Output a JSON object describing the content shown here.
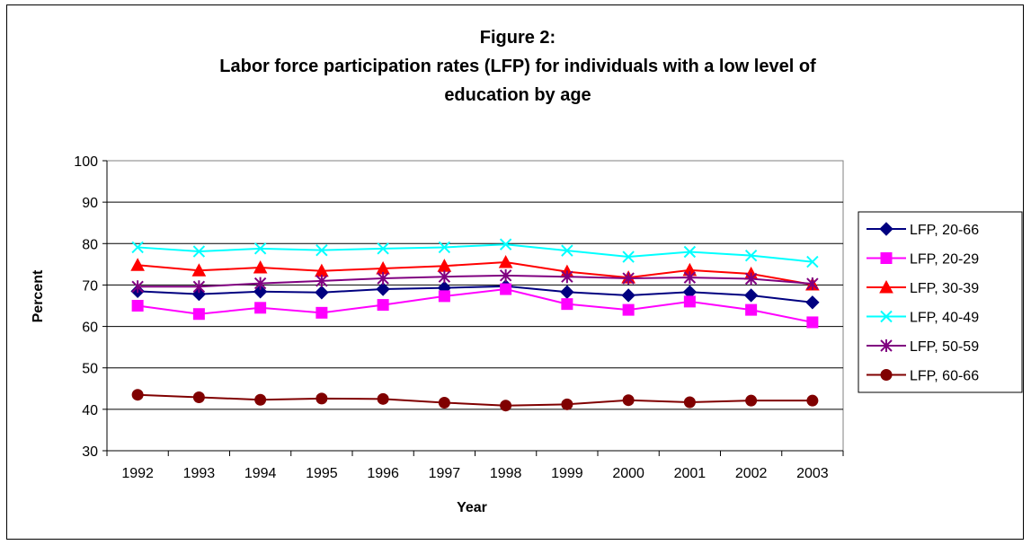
{
  "chart_data": {
    "type": "line",
    "title_lines": [
      "Figure 2:",
      "Labor force participation rates (LFP) for individuals with a low level of",
      "education by age"
    ],
    "xlabel": "Year",
    "ylabel": "Percent",
    "categories": [
      "1992",
      "1993",
      "1994",
      "1995",
      "1996",
      "1997",
      "1998",
      "1999",
      "2000",
      "2001",
      "2002",
      "2003"
    ],
    "yticks": [
      "100",
      "90",
      "80",
      "70",
      "60",
      "50",
      "40",
      "30"
    ],
    "ylim": [
      30,
      100
    ],
    "grid": "horizontal",
    "legend_position": "right",
    "series": [
      {
        "name": "LFP, 20-66",
        "color": "#000080",
        "marker": "diamond",
        "values": [
          68.5,
          67.8,
          68.4,
          68.2,
          69.0,
          69.3,
          69.7,
          68.3,
          67.5,
          68.3,
          67.5,
          65.8
        ]
      },
      {
        "name": "LFP, 20-29",
        "color": "#FF00FF",
        "marker": "square",
        "values": [
          65.0,
          63.0,
          64.5,
          63.3,
          65.2,
          67.3,
          69.0,
          65.4,
          64.0,
          66.0,
          64.0,
          61.0
        ]
      },
      {
        "name": "LFP, 30-39",
        "color": "#FF0000",
        "marker": "triangle",
        "values": [
          74.8,
          73.5,
          74.2,
          73.4,
          74.0,
          74.6,
          75.5,
          73.2,
          71.8,
          73.6,
          72.7,
          70.1
        ]
      },
      {
        "name": "LFP, 40-49",
        "color": "#00FFFF",
        "marker": "x",
        "values": [
          79.1,
          78.1,
          78.8,
          78.4,
          78.8,
          79.1,
          79.8,
          78.3,
          76.8,
          78.0,
          77.1,
          75.6
        ]
      },
      {
        "name": "LFP, 50-59",
        "color": "#800080",
        "marker": "star",
        "values": [
          69.6,
          69.6,
          70.4,
          71.0,
          71.6,
          72.0,
          72.3,
          72.0,
          71.6,
          71.8,
          71.5,
          70.3
        ]
      },
      {
        "name": "LFP, 60-66",
        "color": "#800000",
        "marker": "circle",
        "values": [
          43.5,
          42.9,
          42.3,
          42.6,
          42.5,
          41.6,
          40.9,
          41.2,
          42.2,
          41.7,
          42.1,
          42.1
        ]
      }
    ]
  }
}
